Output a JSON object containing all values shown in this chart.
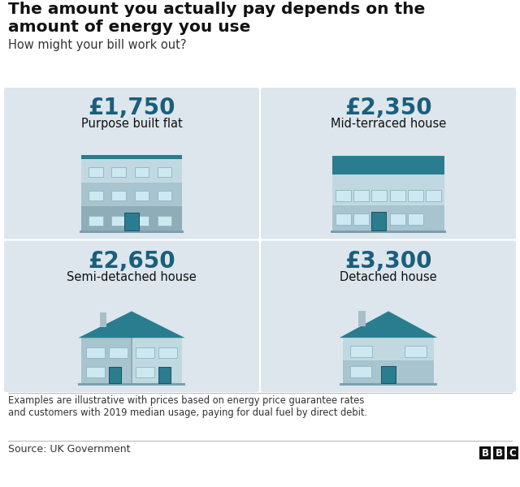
{
  "title_line1": "The amount you actually pay depends on the",
  "title_line2": "amount of energy you use",
  "subtitle": "How might your bill work out?",
  "footnote_line1": "Examples are illustrative with prices based on energy price guarantee rates",
  "footnote_line2": "and customers with 2019 median usage, paying for dual fuel by direct debit.",
  "source": "Source: UK Government",
  "bg_color": "#ffffff",
  "panel_bg": "#dce6ec",
  "price_color": "#1b5e7b",
  "panels": [
    {
      "price": "£1,750",
      "label": "Purpose built flat",
      "type": "flat"
    },
    {
      "price": "£2,350",
      "label": "Mid-terraced house",
      "type": "mid_terrace"
    },
    {
      "price": "£2,650",
      "label": "Semi-detached house",
      "type": "semi_detached"
    },
    {
      "price": "£3,300",
      "label": "Detached house",
      "type": "detached"
    }
  ],
  "roof_dark": "#2a7d8e",
  "roof_mid": "#3399aa",
  "wall_main": "#a8c4ce",
  "wall_light": "#c2d8e0",
  "wall_mid": "#b5cdd6",
  "wall_dark": "#8eadb8",
  "window_fill": "#cde8f0",
  "window_edge": "#8fbcca",
  "door_fill": "#2a7d8e",
  "door_edge": "#1b5060",
  "ground_fill": "#7aa0ae",
  "chimney": "#a8bfc8"
}
